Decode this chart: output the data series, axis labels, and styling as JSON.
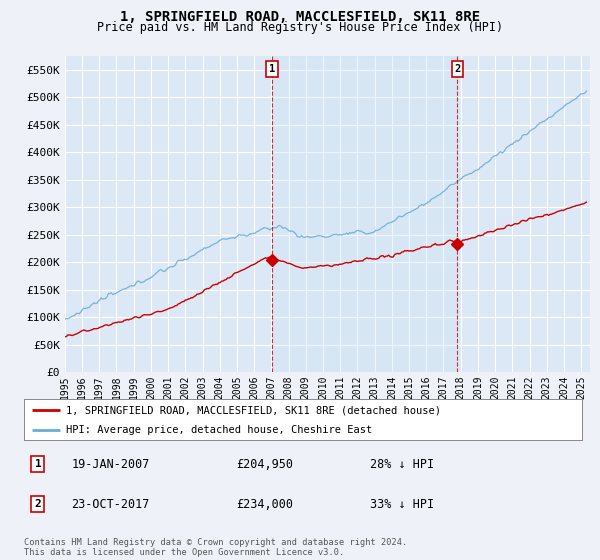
{
  "title": "1, SPRINGFIELD ROAD, MACCLESFIELD, SK11 8RE",
  "subtitle": "Price paid vs. HM Land Registry's House Price Index (HPI)",
  "ylabel_values": [
    "£0",
    "£50K",
    "£100K",
    "£150K",
    "£200K",
    "£250K",
    "£300K",
    "£350K",
    "£400K",
    "£450K",
    "£500K",
    "£550K"
  ],
  "ylim": [
    0,
    575000
  ],
  "yticks": [
    0,
    50000,
    100000,
    150000,
    200000,
    250000,
    300000,
    350000,
    400000,
    450000,
    500000,
    550000
  ],
  "xlim_start": 1995.0,
  "xlim_end": 2025.5,
  "background_color": "#eef2f8",
  "plot_bg_color": "#dce8f5",
  "shade_color": "#d0e4f5",
  "grid_color": "#ffffff",
  "hpi_color": "#6aaed6",
  "price_color": "#cc0000",
  "marker1_date": 2007.05,
  "marker1_price": 204950,
  "marker1_label": "1",
  "marker2_date": 2017.81,
  "marker2_price": 234000,
  "marker2_label": "2",
  "legend_line1": "1, SPRINGFIELD ROAD, MACCLESFIELD, SK11 8RE (detached house)",
  "legend_line2": "HPI: Average price, detached house, Cheshire East",
  "annotation1_date": "19-JAN-2007",
  "annotation1_price": "£204,950",
  "annotation1_pct": "28% ↓ HPI",
  "annotation2_date": "23-OCT-2017",
  "annotation2_price": "£234,000",
  "annotation2_pct": "33% ↓ HPI",
  "footer": "Contains HM Land Registry data © Crown copyright and database right 2024.\nThis data is licensed under the Open Government Licence v3.0.",
  "xtick_years": [
    1995,
    1996,
    1997,
    1998,
    1999,
    2000,
    2001,
    2002,
    2003,
    2004,
    2005,
    2006,
    2007,
    2008,
    2009,
    2010,
    2011,
    2012,
    2013,
    2014,
    2015,
    2016,
    2017,
    2018,
    2019,
    2020,
    2021,
    2022,
    2023,
    2024,
    2025
  ]
}
